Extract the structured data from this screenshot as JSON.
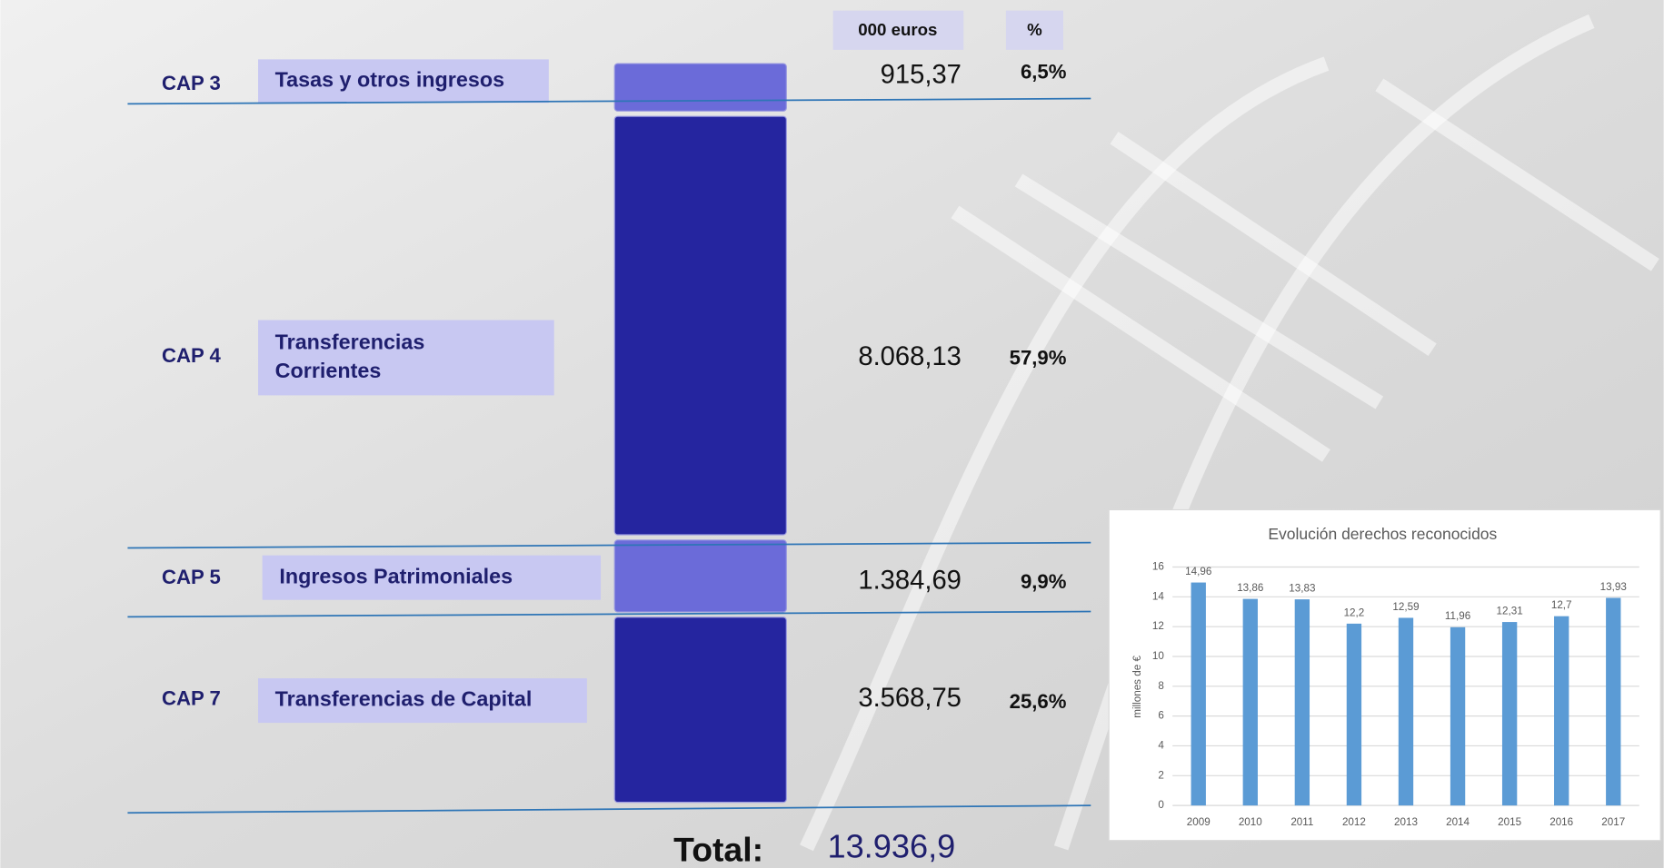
{
  "header": {
    "amount": "000 euros",
    "percent": "%"
  },
  "rows": [
    {
      "cap": "CAP 3",
      "label": [
        "Tasas y otros ingresos"
      ],
      "amount": {
        "value": 915.37,
        "label": "915,37"
      },
      "percent": "6,5%",
      "color": "#6b6bd9"
    },
    {
      "cap": "CAP 4",
      "label": [
        "Transferencias",
        "Corrientes"
      ],
      "amount": {
        "value": 8068.13,
        "label": "8.068,13"
      },
      "percent": "57,9%",
      "color": "#25259f"
    },
    {
      "cap": "CAP 5",
      "label": [
        "Ingresos Patrimoniales"
      ],
      "amount": {
        "value": 1384.69,
        "label": "1.384,69"
      },
      "percent": "9,9%",
      "color": "#6b6bd9"
    },
    {
      "cap": "CAP 7",
      "label": [
        "Transferencias de Capital"
      ],
      "amount": {
        "value": 3568.75,
        "label": "3.568,75"
      },
      "percent": "25,6%",
      "color": "#25259f"
    }
  ],
  "total": {
    "label": "Total:",
    "value": "13.936,9"
  },
  "chart_data": {
    "type": "bar",
    "title": "Evolución derechos reconocidos",
    "y_label": "millones de €",
    "categories": [
      "2009",
      "2010",
      "2011",
      "2012",
      "2013",
      "2014",
      "2015",
      "2016",
      "2017"
    ],
    "values": [
      14.96,
      13.86,
      13.83,
      12.2,
      12.59,
      11.96,
      12.31,
      12.7,
      13.93
    ],
    "value_labels": [
      "14,96",
      "13,86",
      "13,83",
      "12,2",
      "12,59",
      "11,96",
      "12,31",
      "12,7",
      "13,93"
    ],
    "color": "#5b9bd5",
    "ylim": [
      0,
      16
    ],
    "yticks": [
      0,
      2,
      4,
      6,
      8,
      10,
      12,
      14,
      16
    ],
    "grid": true
  }
}
